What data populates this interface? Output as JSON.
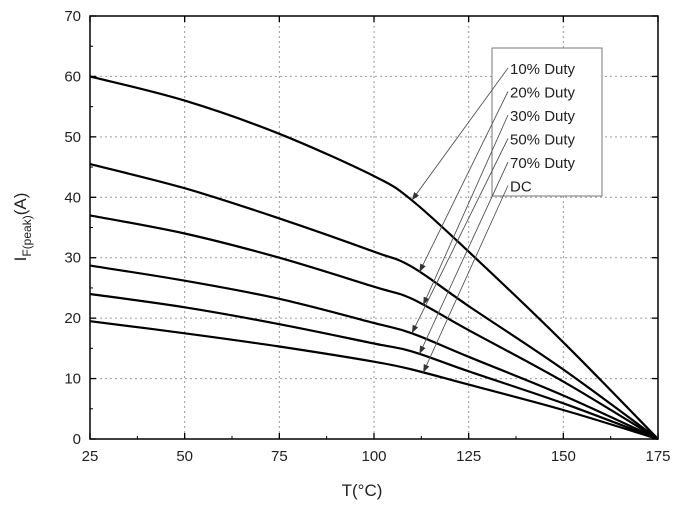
{
  "chart_data": {
    "type": "line",
    "xlabel": "T(°C)",
    "ylabel": {
      "main": "I",
      "subscript": "F(peak)",
      "unit": "(A)"
    },
    "xlim": [
      25,
      175
    ],
    "ylim": [
      0,
      70
    ],
    "xticks": [
      "25",
      "50",
      "75",
      "100",
      "125",
      "150",
      "175"
    ],
    "yticks": [
      "0",
      "10",
      "20",
      "30",
      "40",
      "50",
      "60",
      "70"
    ],
    "grid": true,
    "legend_position": "top-right",
    "series": [
      {
        "name": "10% Duty",
        "x": [
          25,
          50,
          75,
          100,
          110,
          125,
          150,
          175
        ],
        "y": [
          60,
          56,
          50.5,
          43.5,
          39.5,
          31,
          16,
          0
        ]
      },
      {
        "name": "20% Duty",
        "x": [
          25,
          50,
          75,
          100,
          110,
          125,
          150,
          175
        ],
        "y": [
          45.5,
          41.5,
          36.5,
          31,
          28.5,
          22,
          11.5,
          0
        ]
      },
      {
        "name": "30% Duty",
        "x": [
          25,
          50,
          75,
          100,
          110,
          125,
          150,
          175
        ],
        "y": [
          37,
          34,
          30,
          25.2,
          23.2,
          18,
          9.5,
          0
        ]
      },
      {
        "name": "50% Duty",
        "x": [
          25,
          50,
          75,
          100,
          110,
          125,
          150,
          175
        ],
        "y": [
          28.7,
          26.2,
          23.2,
          19.2,
          17.5,
          13.6,
          7.2,
          0
        ]
      },
      {
        "name": "70% Duty",
        "x": [
          25,
          50,
          75,
          100,
          110,
          125,
          150,
          175
        ],
        "y": [
          24,
          21.8,
          19,
          15.8,
          14.5,
          11.2,
          5.9,
          0
        ]
      },
      {
        "name": "DC",
        "x": [
          25,
          50,
          75,
          100,
          110,
          125,
          150,
          175
        ],
        "y": [
          19.5,
          17.5,
          15.3,
          12.8,
          11.5,
          9,
          4.8,
          0
        ]
      }
    ]
  }
}
